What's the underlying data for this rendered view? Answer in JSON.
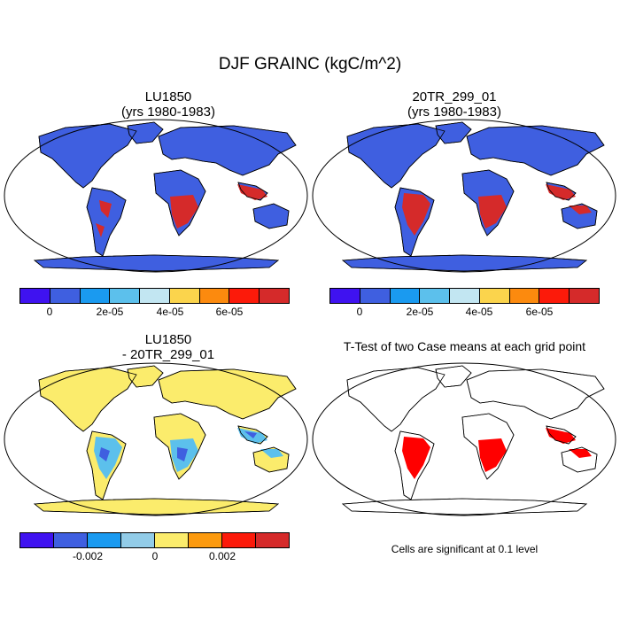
{
  "title": "DJF GRAINC (kgC/m^2)",
  "panels": {
    "p1": {
      "line1": "LU1850",
      "line2": "(yrs 1980-1983)"
    },
    "p2": {
      "line1": "20TR_299_01",
      "line2": "(yrs 1980-1983)"
    },
    "p3": {
      "line1": "LU1850",
      "line2": "- 20TR_299_01"
    },
    "p4": {
      "line1": "T-Test of two Case means at each grid point"
    }
  },
  "colorbar_top": {
    "colors": [
      "#3f12f0",
      "#3f5fe0",
      "#1a9af0",
      "#5cc0ec",
      "#c2e6f2",
      "#fbd44c",
      "#fc8a0e",
      "#fc1a0a",
      "#d52a2a"
    ],
    "tick_labels": [
      "0",
      "2e-05",
      "4e-05",
      "6e-05"
    ]
  },
  "colorbar_diff": {
    "colors": [
      "#3f12f0",
      "#3f5fe0",
      "#1a9af0",
      "#92cce8",
      "#fbec6c",
      "#fc9a0e",
      "#fc1a0a",
      "#d52a2a"
    ],
    "tick_labels": [
      "-0.002",
      "0",
      "0.002"
    ]
  },
  "note": "Cells are significant at 0.1 level",
  "colors": {
    "ocean": "#ffffff",
    "land_low": "#3f5fe0",
    "land_high": "#d52a2a",
    "diff_land": "#fbec6c",
    "diff_low": "#5cc0ec",
    "sig": "#ff0000"
  }
}
